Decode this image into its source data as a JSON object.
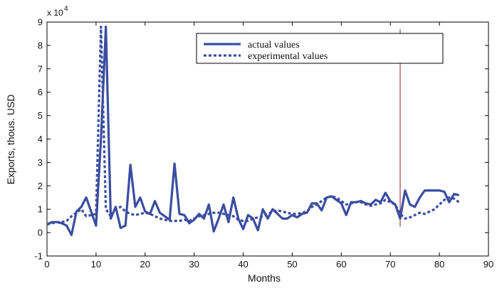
{
  "chart_data": {
    "type": "line",
    "title": "",
    "xlabel": "Months",
    "ylabel": "Exports, thous. USD",
    "y_exponent_label": "x 10",
    "y_exponent_power": "4",
    "xlim": [
      0,
      90
    ],
    "ylim": [
      -1,
      9
    ],
    "x_ticks": [
      0,
      10,
      20,
      30,
      40,
      50,
      60,
      70,
      80,
      90
    ],
    "y_ticks": [
      -1,
      0,
      1,
      2,
      3,
      4,
      5,
      6,
      7,
      8,
      9
    ],
    "grid": false,
    "legend_position": "top-center",
    "vertical_marker_x": 72,
    "vertical_marker_color": "#8B1A1A",
    "series": [
      {
        "name": "actual values",
        "style": "solid",
        "color": "#3A4DA0",
        "x": [
          0,
          1,
          2,
          3,
          4,
          5,
          6,
          7,
          8,
          9,
          10,
          11,
          12,
          13,
          14,
          15,
          16,
          17,
          18,
          19,
          20,
          21,
          22,
          23,
          24,
          25,
          26,
          27,
          28,
          29,
          30,
          31,
          32,
          33,
          34,
          35,
          36,
          37,
          38,
          39,
          40,
          41,
          42,
          43,
          44,
          45,
          46,
          47,
          48,
          49,
          50,
          51,
          52,
          53,
          54,
          55,
          56,
          57,
          58,
          59,
          60,
          61,
          62,
          63,
          64,
          65,
          66,
          67,
          68,
          69,
          70,
          71,
          72,
          73,
          74,
          75,
          76,
          77,
          78,
          79,
          80,
          81,
          82,
          83,
          84
        ],
        "y": [
          0.35,
          0.45,
          0.45,
          0.4,
          0.3,
          -0.1,
          0.9,
          1.1,
          1.5,
          0.9,
          0.3,
          4.0,
          8.8,
          0.6,
          1.1,
          0.2,
          0.3,
          2.9,
          1.1,
          1.5,
          0.9,
          0.8,
          1.35,
          0.85,
          0.7,
          0.55,
          2.95,
          0.8,
          0.75,
          0.4,
          0.55,
          0.8,
          0.6,
          1.2,
          0.05,
          0.6,
          1.2,
          0.45,
          1.5,
          0.6,
          0.15,
          0.75,
          0.6,
          0.1,
          1.0,
          0.6,
          1.0,
          0.8,
          0.6,
          0.6,
          0.75,
          0.65,
          0.8,
          0.85,
          1.25,
          1.25,
          0.95,
          1.5,
          1.55,
          1.4,
          1.25,
          0.75,
          1.3,
          1.3,
          1.35,
          1.25,
          1.2,
          1.4,
          1.3,
          1.7,
          1.35,
          1.2,
          0.6,
          1.8,
          1.2,
          1.1,
          1.5,
          1.8,
          1.8,
          1.8,
          1.8,
          1.75,
          1.3,
          1.65,
          1.6
        ]
      },
      {
        "name": "experimental values",
        "style": "dashed",
        "color": "#3A4DA0",
        "x": [
          0,
          1,
          2,
          3,
          4,
          5,
          6,
          7,
          8,
          9,
          10,
          11,
          12,
          13,
          14,
          15,
          16,
          17,
          18,
          19,
          20,
          21,
          22,
          23,
          24,
          25,
          26,
          27,
          28,
          29,
          30,
          31,
          32,
          33,
          34,
          35,
          36,
          37,
          38,
          39,
          40,
          41,
          42,
          43,
          44,
          45,
          46,
          47,
          48,
          49,
          50,
          51,
          52,
          53,
          54,
          55,
          56,
          57,
          58,
          59,
          60,
          61,
          62,
          63,
          64,
          65,
          66,
          67,
          68,
          69,
          70,
          71,
          72,
          73,
          74,
          75,
          76,
          77,
          78,
          79,
          80,
          81,
          82,
          83,
          84
        ],
        "y": [
          0.35,
          0.4,
          0.45,
          0.45,
          0.5,
          0.7,
          0.85,
          1.0,
          0.7,
          0.75,
          0.8,
          8.8,
          1.0,
          0.7,
          1.0,
          1.1,
          0.9,
          0.8,
          0.75,
          0.8,
          0.85,
          0.8,
          0.7,
          0.6,
          0.55,
          0.5,
          0.5,
          0.5,
          0.55,
          0.5,
          0.6,
          0.7,
          0.75,
          0.8,
          0.85,
          0.85,
          0.8,
          0.75,
          0.7,
          0.55,
          0.5,
          0.5,
          0.6,
          0.65,
          0.7,
          0.8,
          0.9,
          0.95,
          0.9,
          0.85,
          0.8,
          0.8,
          0.85,
          0.9,
          1.1,
          1.2,
          1.35,
          1.5,
          1.55,
          1.5,
          1.35,
          1.2,
          1.25,
          1.3,
          1.3,
          1.2,
          1.15,
          1.2,
          1.25,
          1.4,
          1.3,
          1.2,
          0.8,
          0.6,
          0.65,
          0.75,
          0.85,
          0.8,
          0.9,
          1.0,
          1.2,
          1.4,
          1.5,
          1.45,
          1.3
        ]
      }
    ]
  }
}
